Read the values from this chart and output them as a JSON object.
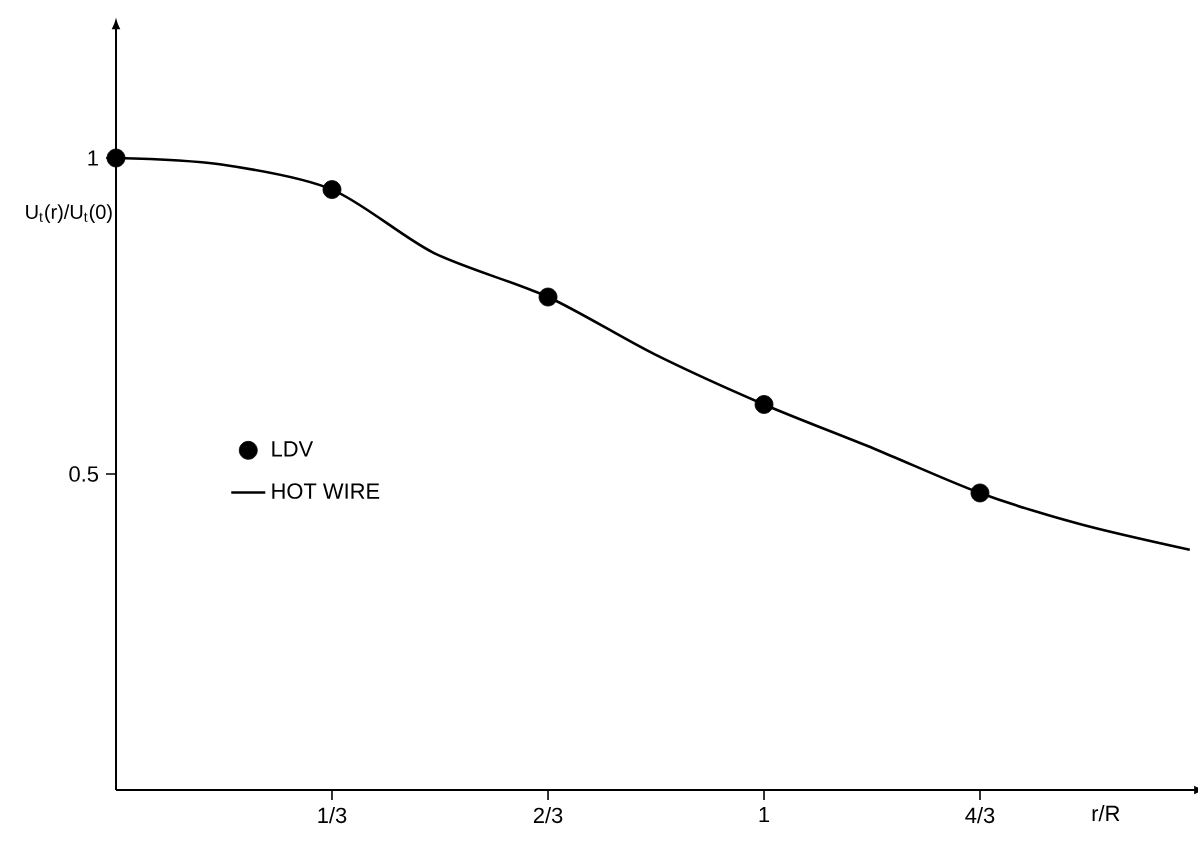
{
  "chart_data": {
    "type": "line",
    "xlabel": "r/R",
    "ylabel": "U$_{t}$(r)/U$_{t}$(0)",
    "xlim": [
      0,
      1.66
    ],
    "ylim": [
      0,
      1.2
    ],
    "xticks": [
      {
        "value": 0.3333,
        "label": "1/3"
      },
      {
        "value": 0.6667,
        "label": "2/3"
      },
      {
        "value": 1,
        "label": "1"
      },
      {
        "value": 1.3333,
        "label": "4/3"
      }
    ],
    "yticks": [
      0.5,
      {
        "value": 1,
        "label": "1"
      }
    ],
    "legend": "left",
    "grid": false,
    "series": [
      {
        "name": "LDV",
        "type": "scatter",
        "marker": "circle",
        "color": "#000000",
        "x": [
          0,
          0.3333,
          0.6667,
          1,
          1.3333
        ],
        "values": [
          1,
          0.95,
          0.78,
          0.61,
          0.47
        ]
      },
      {
        "name": "HOT WIRE",
        "marker": "none",
        "line_style": "solid",
        "color": "#000000",
        "x": [
          0,
          0.16,
          0.3333,
          0.49,
          0.6667,
          0.83,
          1,
          1.17,
          1.3333,
          1.49,
          1.657
        ],
        "values": [
          1,
          0.99,
          0.95,
          0.85,
          0.78,
          0.69,
          0.61,
          0.54,
          0.47,
          0.42,
          0.38
        ]
      }
    ]
  }
}
